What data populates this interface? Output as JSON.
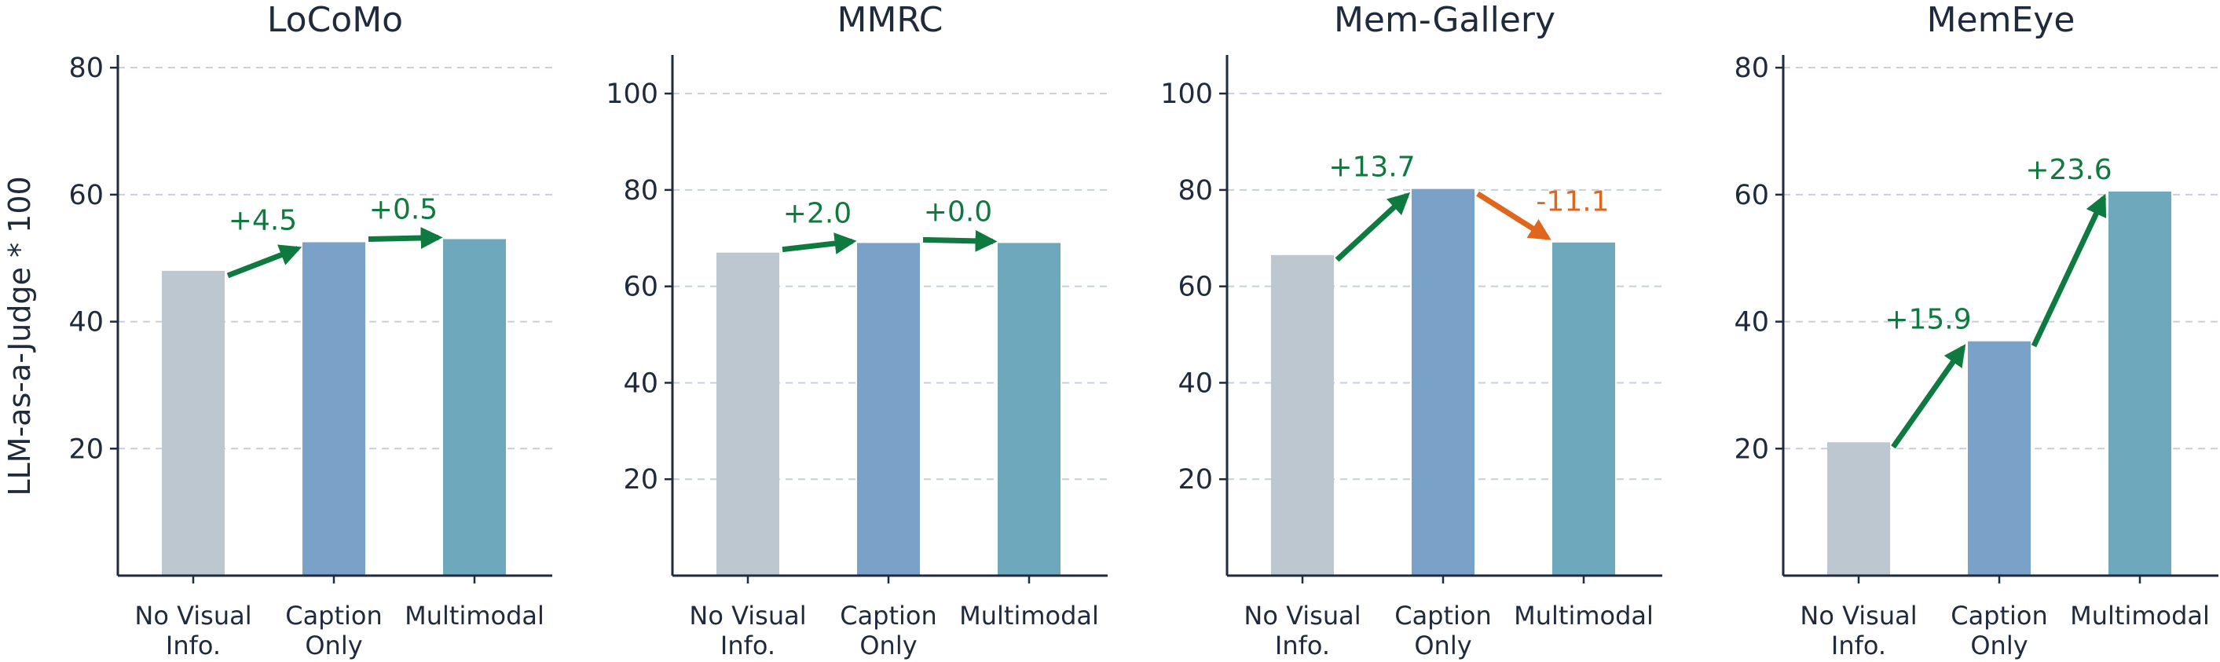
{
  "figure": {
    "ylabel": "LLM-as-a-Judge * 100"
  },
  "colors": {
    "no_visual": "#bdc7cf",
    "caption_only": "#7aa1c7",
    "multimodal": "#6ea8bc",
    "positive": "#0f7a3f",
    "negative": "#e0661d"
  },
  "chart_data": [
    {
      "type": "bar",
      "title": "LoCoMo",
      "categories": [
        "No Visual\nInfo.",
        "Caption\nOnly",
        "Multimodal"
      ],
      "values": [
        48.0,
        52.5,
        53.0
      ],
      "deltas": [
        "+4.5",
        "+0.5"
      ],
      "ylim": [
        0,
        82
      ],
      "yticks": [
        20,
        40,
        60,
        80
      ],
      "grid": true
    },
    {
      "type": "bar",
      "title": "MMRC",
      "categories": [
        "No Visual\nInfo.",
        "Caption\nOnly",
        "Multimodal"
      ],
      "values": [
        67.0,
        69.0,
        69.0
      ],
      "deltas": [
        "+2.0",
        "+0.0"
      ],
      "ylim": [
        0,
        108
      ],
      "yticks": [
        20,
        40,
        60,
        80,
        100
      ],
      "grid": true
    },
    {
      "type": "bar",
      "title": "Mem-Gallery",
      "categories": [
        "No Visual\nInfo.",
        "Caption\nOnly",
        "Multimodal"
      ],
      "values": [
        66.5,
        80.2,
        69.1
      ],
      "deltas": [
        "+13.7",
        "-11.1"
      ],
      "ylim": [
        0,
        108
      ],
      "yticks": [
        20,
        40,
        60,
        80,
        100
      ],
      "grid": true
    },
    {
      "type": "bar",
      "title": "MemEye",
      "categories": [
        "No Visual\nInfo.",
        "Caption\nOnly",
        "Multimodal"
      ],
      "values": [
        21.0,
        36.9,
        60.5
      ],
      "deltas": [
        "+15.9",
        "+23.6"
      ],
      "ylim": [
        0,
        82
      ],
      "yticks": [
        20,
        40,
        60,
        80
      ],
      "grid": true
    }
  ]
}
